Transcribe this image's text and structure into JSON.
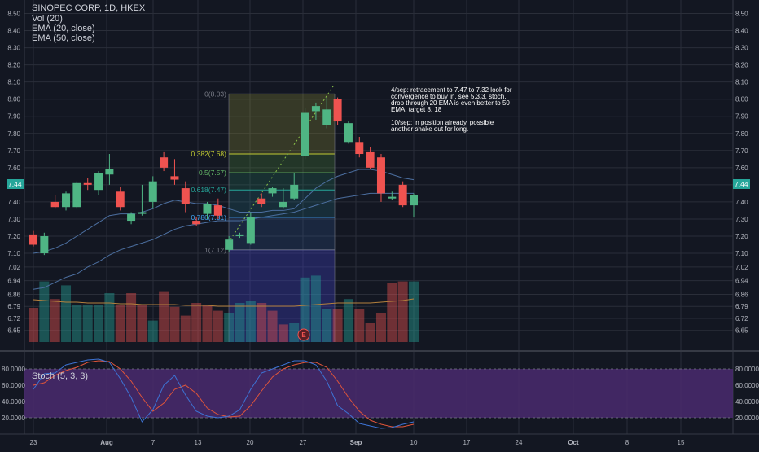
{
  "legend": {
    "symbol": "SINOPEC CORP, 1D, HKEX",
    "volume": "Vol (20)",
    "ema20": "EMA (20, close)",
    "ema50": "EMA (50, close)"
  },
  "annotation": {
    "paragraphs": [
      "4/sep: retracement to 7.47 to 7.32 look for convergence to buy in. see 5.3.3. stoch. drop through 20 EMA is even better to 50 EMA. target 8. 18",
      "10/sep: in position already. possible another shake out for long."
    ]
  },
  "current_price": "7.44",
  "earnings_marker": "E",
  "stoch_label": "Stoch (5, 3, 3)",
  "colors": {
    "background": "#131722",
    "up": "#26a69a",
    "down": "#ef5350",
    "up_bright": "#4caf50",
    "stoch_band": "#4a2a6e",
    "k_line": "#3d73d4",
    "d_line": "#e0553a",
    "ema20": "#4c6fa0",
    "ema50": "#b5813d"
  },
  "chart_data": [
    {
      "type": "candlestick",
      "title": "SINOPEC CORP, 1D, HKEX",
      "price_axis_ticks": [
        "8.50",
        "8.40",
        "8.30",
        "8.20",
        "8.10",
        "8.00",
        "7.90",
        "7.80",
        "7.70",
        "7.60",
        "7.50",
        "7.40",
        "7.30",
        "7.20",
        "7.10",
        "7.02",
        "6.94",
        "6.86",
        "6.79",
        "6.72",
        "6.65"
      ],
      "date_axis_ticks": [
        "23",
        "Aug",
        "7",
        "13",
        "20",
        "27",
        "Sep",
        "10",
        "17",
        "24",
        "Oct",
        "8",
        "15"
      ],
      "ylim": [
        6.62,
        8.55
      ],
      "candles": [
        {
          "o": 7.21,
          "h": 7.23,
          "l": 7.14,
          "c": 7.15
        },
        {
          "o": 7.1,
          "h": 7.22,
          "l": 7.09,
          "c": 7.2
        },
        {
          "o": 7.4,
          "h": 7.44,
          "l": 7.36,
          "c": 7.37
        },
        {
          "o": 7.37,
          "h": 7.46,
          "l": 7.35,
          "c": 7.45
        },
        {
          "o": 7.37,
          "h": 7.52,
          "l": 7.36,
          "c": 7.51
        },
        {
          "o": 7.51,
          "h": 7.54,
          "l": 7.47,
          "c": 7.5
        },
        {
          "o": 7.47,
          "h": 7.58,
          "l": 7.44,
          "c": 7.57
        },
        {
          "o": 7.56,
          "h": 7.68,
          "l": 7.5,
          "c": 7.59
        },
        {
          "o": 7.46,
          "h": 7.49,
          "l": 7.35,
          "c": 7.37
        },
        {
          "o": 7.29,
          "h": 7.34,
          "l": 7.27,
          "c": 7.33
        },
        {
          "o": 7.33,
          "h": 7.5,
          "l": 7.32,
          "c": 7.34
        },
        {
          "o": 7.4,
          "h": 7.55,
          "l": 7.36,
          "c": 7.52
        },
        {
          "o": 7.66,
          "h": 7.69,
          "l": 7.58,
          "c": 7.6
        },
        {
          "o": 7.55,
          "h": 7.65,
          "l": 7.5,
          "c": 7.53
        },
        {
          "o": 7.48,
          "h": 7.52,
          "l": 7.34,
          "c": 7.39
        },
        {
          "o": 7.29,
          "h": 7.31,
          "l": 7.26,
          "c": 7.27
        },
        {
          "o": 7.33,
          "h": 7.4,
          "l": 7.3,
          "c": 7.39
        },
        {
          "o": 7.38,
          "h": 7.42,
          "l": 7.3,
          "c": 7.32
        },
        {
          "o": 7.12,
          "h": 7.2,
          "l": 7.11,
          "c": 7.18
        },
        {
          "o": 7.2,
          "h": 7.22,
          "l": 7.19,
          "c": 7.21
        },
        {
          "o": 7.16,
          "h": 7.34,
          "l": 7.15,
          "c": 7.31
        },
        {
          "o": 7.42,
          "h": 7.45,
          "l": 7.37,
          "c": 7.39
        },
        {
          "o": 7.45,
          "h": 7.49,
          "l": 7.43,
          "c": 7.48
        },
        {
          "o": 7.37,
          "h": 7.48,
          "l": 7.36,
          "c": 7.4
        },
        {
          "o": 7.42,
          "h": 7.57,
          "l": 7.41,
          "c": 7.5
        },
        {
          "o": 7.67,
          "h": 7.95,
          "l": 7.65,
          "c": 7.92
        },
        {
          "o": 7.93,
          "h": 7.98,
          "l": 7.88,
          "c": 7.96
        },
        {
          "o": 7.85,
          "h": 8.01,
          "l": 7.83,
          "c": 7.94
        },
        {
          "o": 8.0,
          "h": 8.01,
          "l": 7.85,
          "c": 7.87
        },
        {
          "o": 7.75,
          "h": 7.87,
          "l": 7.74,
          "c": 7.86
        },
        {
          "o": 7.75,
          "h": 7.78,
          "l": 7.66,
          "c": 7.68
        },
        {
          "o": 7.69,
          "h": 7.72,
          "l": 7.59,
          "c": 7.6
        },
        {
          "o": 7.66,
          "h": 7.68,
          "l": 7.4,
          "c": 7.45
        },
        {
          "o": 7.42,
          "h": 7.46,
          "l": 7.41,
          "c": 7.43
        },
        {
          "o": 7.5,
          "h": 7.52,
          "l": 7.37,
          "c": 7.38
        },
        {
          "o": 7.38,
          "h": 7.45,
          "l": 7.31,
          "c": 7.44
        }
      ],
      "volume_colors_up": [
        false,
        true,
        false,
        true,
        true,
        true,
        true,
        true,
        false,
        false,
        false,
        true,
        false,
        false,
        false,
        false,
        false,
        false,
        true,
        true,
        true,
        false,
        false,
        false,
        true,
        true,
        true,
        true,
        false,
        true,
        false,
        false,
        false,
        false,
        false,
        true
      ],
      "volume_levels": [
        0.35,
        0.62,
        0.44,
        0.58,
        0.38,
        0.38,
        0.38,
        0.5,
        0.38,
        0.5,
        0.38,
        0.22,
        0.52,
        0.36,
        0.27,
        0.4,
        0.38,
        0.32,
        0.3,
        0.4,
        0.42,
        0.4,
        0.32,
        0.18,
        0.2,
        0.66,
        0.68,
        0.34,
        0.34,
        0.44,
        0.34,
        0.2,
        0.3,
        0.6,
        0.62,
        0.62
      ],
      "ema20": [
        7.1,
        7.11,
        7.13,
        7.16,
        7.2,
        7.24,
        7.28,
        7.32,
        7.33,
        7.33,
        7.34,
        7.36,
        7.39,
        7.41,
        7.4,
        7.39,
        7.39,
        7.38,
        7.36,
        7.34,
        7.34,
        7.34,
        7.35,
        7.35,
        7.36,
        7.42,
        7.48,
        7.52,
        7.55,
        7.57,
        7.59,
        7.59,
        7.58,
        7.56,
        7.54,
        7.53
      ],
      "ema50": [
        6.89,
        6.9,
        6.93,
        6.96,
        6.98,
        7.02,
        7.05,
        7.09,
        7.12,
        7.14,
        7.16,
        7.18,
        7.21,
        7.24,
        7.26,
        7.27,
        7.28,
        7.29,
        7.29,
        7.29,
        7.3,
        7.31,
        7.32,
        7.33,
        7.34,
        7.36,
        7.38,
        7.4,
        7.42,
        7.43,
        7.44,
        7.45,
        7.45,
        7.45,
        7.45,
        7.45
      ],
      "fibonacci": [
        {
          "label": "0(8.03)",
          "value": 8.03,
          "color": "#787b86"
        },
        {
          "label": "0.382(7.68)",
          "value": 7.68,
          "color": "#c0ca33"
        },
        {
          "label": "0.5(7.57)",
          "value": 7.57,
          "color": "#66bb6a"
        },
        {
          "label": "0.618(7.47)",
          "value": 7.47,
          "color": "#26a69a"
        },
        {
          "label": "0.786(7.31)",
          "value": 7.31,
          "color": "#42a5f5"
        },
        {
          "label": "1(7.12)",
          "value": 7.12,
          "color": "#787b86"
        }
      ]
    },
    {
      "type": "line",
      "title": "Stoch (5, 3, 3)",
      "ylim": [
        0,
        100
      ],
      "y_ticks": [
        "80.0000",
        "60.0000",
        "40.0000",
        "20.0000"
      ],
      "band": [
        20,
        80
      ],
      "series": [
        {
          "key": "k",
          "values": [
            55,
            74,
            75,
            85,
            88,
            91,
            92,
            88,
            68,
            45,
            15,
            30,
            60,
            72,
            48,
            28,
            22,
            20,
            22,
            30,
            55,
            75,
            80,
            85,
            90,
            90,
            85,
            65,
            35,
            25,
            13,
            10,
            7,
            8,
            12,
            15
          ]
        },
        {
          "key": "d",
          "values": [
            60,
            63,
            72,
            78,
            82,
            88,
            90,
            89,
            80,
            65,
            45,
            28,
            38,
            55,
            60,
            50,
            32,
            24,
            21,
            22,
            35,
            53,
            70,
            80,
            85,
            88,
            88,
            82,
            65,
            45,
            28,
            17,
            12,
            9,
            9,
            12
          ]
        }
      ]
    }
  ]
}
